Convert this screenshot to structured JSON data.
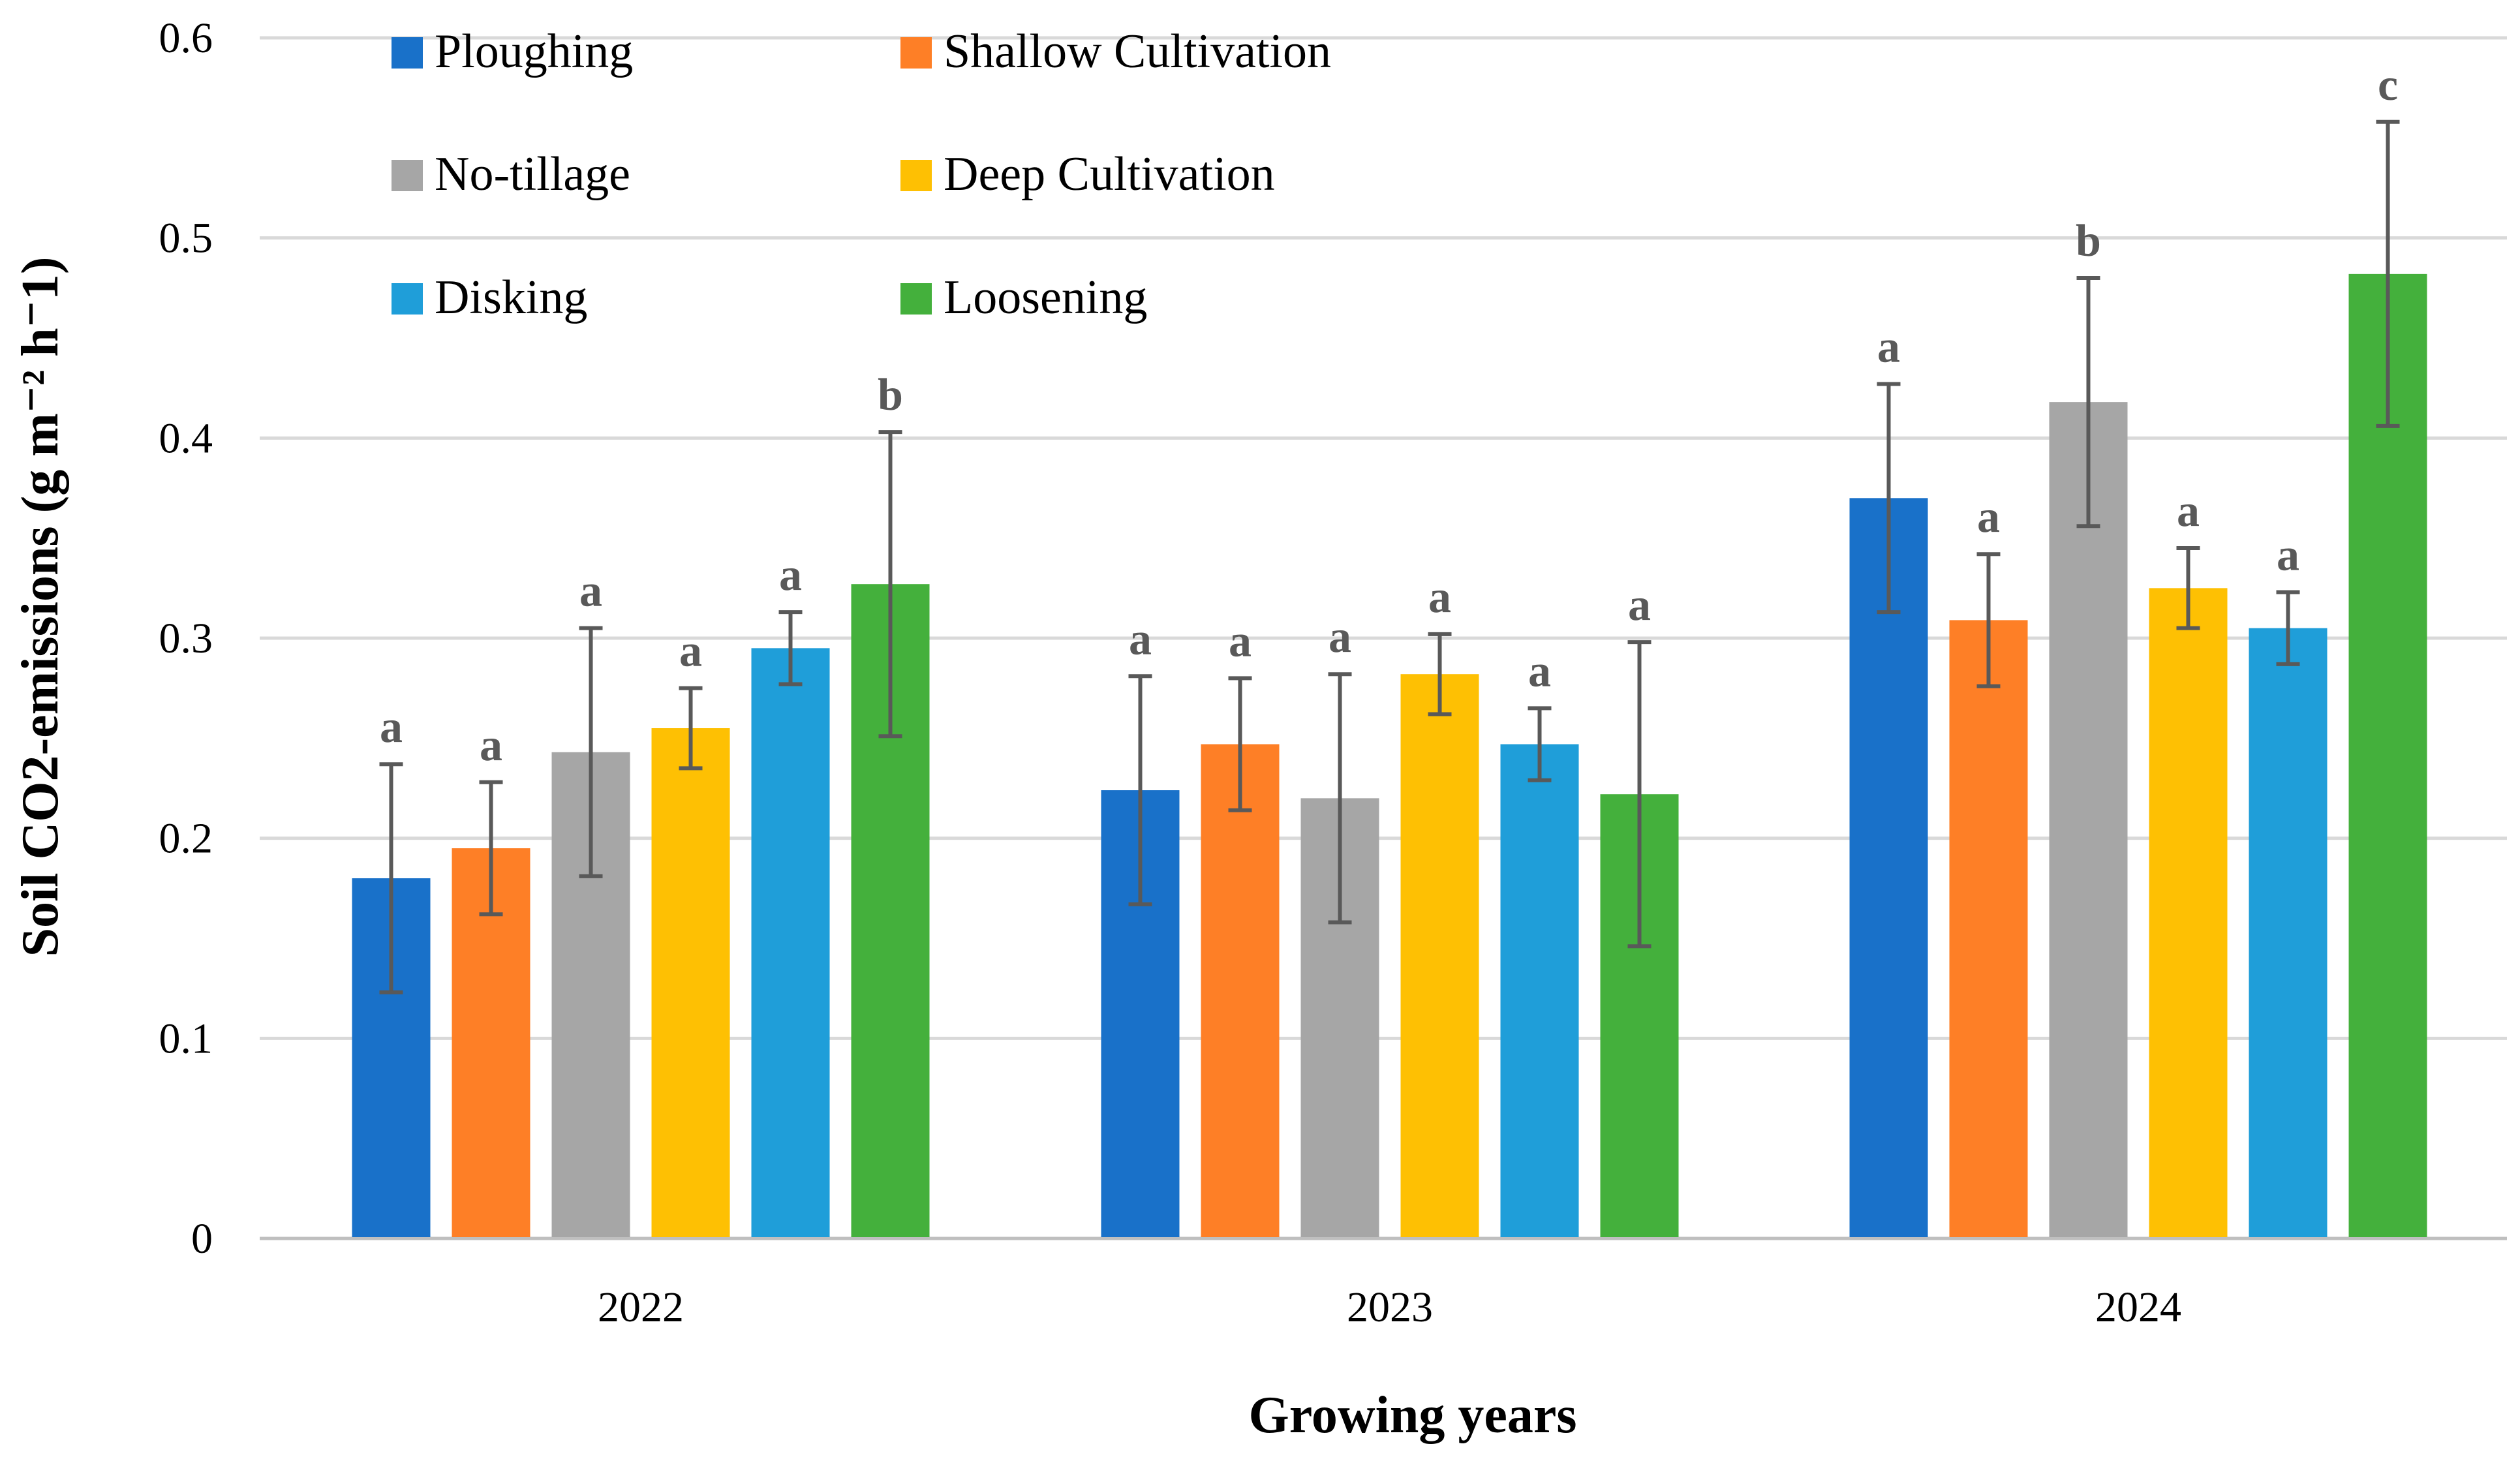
{
  "chart_data": {
    "type": "bar",
    "title": "",
    "xlabel": "Growing years",
    "ylabel": "Soil CO2-emissions (g m⁻² h⁻1)",
    "ylim": [
      0,
      0.6
    ],
    "yticks": [
      0,
      0.1,
      0.2,
      0.3,
      0.4,
      0.5,
      0.6
    ],
    "ytick_labels": [
      "0",
      "0.1",
      "0.2",
      "0.3",
      "0.4",
      "0.5",
      "0.6"
    ],
    "grid": true,
    "legend_position": "top-left",
    "categories": [
      "2022",
      "2023",
      "2024"
    ],
    "series": [
      {
        "name": "Ploughing",
        "color": "#1971C9",
        "values": [
          0.18,
          0.224,
          0.37
        ],
        "errors": [
          0.057,
          0.057,
          0.057
        ],
        "letters": [
          "a",
          "a",
          "a"
        ]
      },
      {
        "name": "Shallow Cultivation",
        "color": "#FE7F26",
        "values": [
          0.195,
          0.247,
          0.309
        ],
        "errors": [
          0.033,
          0.033,
          0.033
        ],
        "letters": [
          "a",
          "a",
          "a"
        ]
      },
      {
        "name": "No-tillage",
        "color": "#A6A6A6",
        "values": [
          0.243,
          0.22,
          0.418
        ],
        "errors": [
          0.062,
          0.062,
          0.062
        ],
        "letters": [
          "a",
          "a",
          "b"
        ]
      },
      {
        "name": "Deep Cultivation",
        "color": "#FEC003",
        "values": [
          0.255,
          0.282,
          0.325
        ],
        "errors": [
          0.02,
          0.02,
          0.02
        ],
        "letters": [
          "a",
          "a",
          "a"
        ]
      },
      {
        "name": "Disking",
        "color": "#1F9ED9",
        "values": [
          0.295,
          0.247,
          0.305
        ],
        "errors": [
          0.018,
          0.018,
          0.018
        ],
        "letters": [
          "a",
          "a",
          "a"
        ]
      },
      {
        "name": "Loosening",
        "color": "#44B03C",
        "values": [
          0.327,
          0.222,
          0.482
        ],
        "errors": [
          0.076,
          0.076,
          0.076
        ],
        "letters": [
          "b",
          "a",
          "c"
        ]
      }
    ],
    "colors": {
      "grid": "#D9D9D9",
      "axis": "#BFBFBF",
      "error_bar": "#595959",
      "letter": "#595959",
      "text": "#000000"
    }
  }
}
